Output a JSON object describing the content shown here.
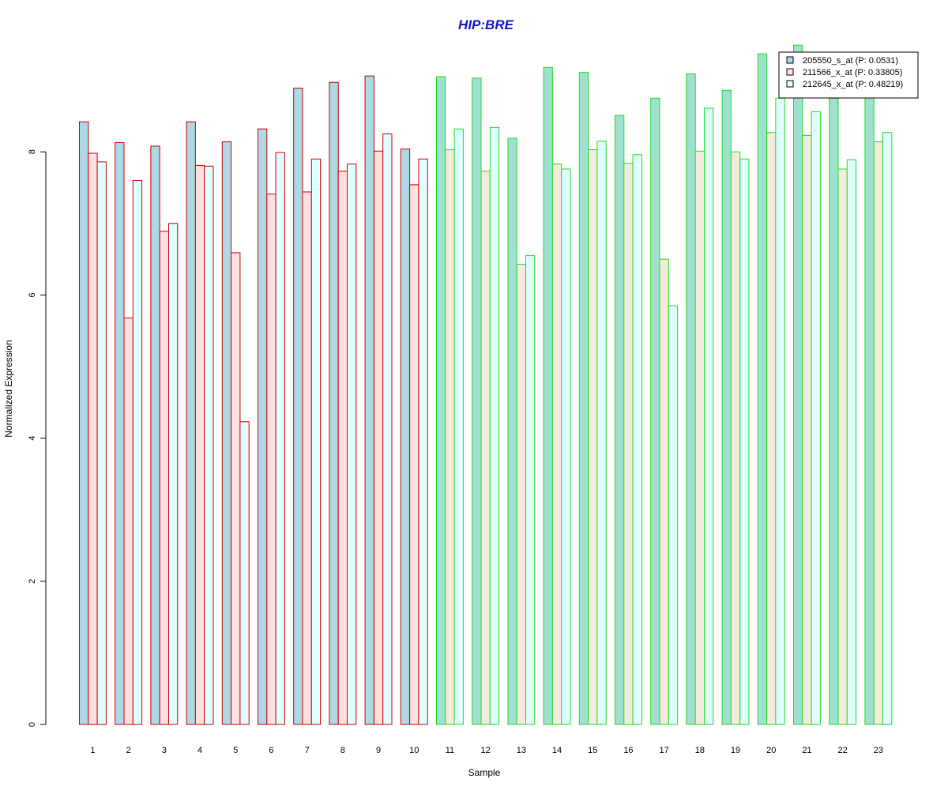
{
  "chart_data": {
    "type": "bar",
    "title": "HIP:BRE",
    "xlabel": "Sample",
    "ylabel": "Normalized Expression",
    "ylim": [
      0,
      9.6
    ],
    "yticks": [
      "0",
      "2",
      "4",
      "6",
      "8"
    ],
    "grid": false,
    "legend_position": "top-right",
    "categories": [
      "1",
      "2",
      "3",
      "4",
      "5",
      "6",
      "7",
      "8",
      "9",
      "10",
      "11",
      "12",
      "13",
      "14",
      "15",
      "16",
      "17",
      "18",
      "19",
      "20",
      "21",
      "22",
      "23"
    ],
    "group_border_colors": [
      "#cc0000",
      "#cc0000",
      "#cc0000",
      "#cc0000",
      "#cc0000",
      "#cc0000",
      "#cc0000",
      "#cc0000",
      "#cc0000",
      "#cc0000",
      "#22dd22",
      "#22dd22",
      "#22dd22",
      "#22dd22",
      "#22dd22",
      "#22dd22",
      "#22dd22",
      "#22dd22",
      "#22dd22",
      "#22dd22",
      "#22dd22",
      "#22dd22",
      "#22dd22"
    ],
    "series": [
      {
        "name": "205550_s_at (P: 0.0531)",
        "fill_red_group": "#add8e6",
        "fill_green_group": "#a0e0d0",
        "values": [
          8.42,
          8.13,
          8.08,
          8.42,
          8.14,
          8.32,
          8.89,
          8.97,
          9.06,
          8.04,
          9.05,
          9.03,
          8.19,
          9.18,
          9.11,
          8.51,
          8.75,
          9.09,
          8.86,
          9.37,
          9.49,
          8.75,
          8.81
        ]
      },
      {
        "name": "211566_x_at (P: 0.33805)",
        "fill_red_group": "#ffe0e0",
        "fill_green_group": "#f5ebdc",
        "values": [
          7.98,
          5.68,
          6.89,
          7.81,
          6.59,
          7.41,
          7.44,
          7.73,
          8.01,
          7.54,
          8.03,
          7.73,
          6.43,
          7.83,
          8.03,
          7.84,
          6.5,
          8.01,
          8.0,
          8.27,
          8.23,
          7.76,
          8.14
        ]
      },
      {
        "name": "212645_x_at (P: 0.48219)",
        "fill_red_group": "#e0ffff",
        "fill_green_group": "#e0ffff",
        "values": [
          7.86,
          7.6,
          7.0,
          7.8,
          4.23,
          7.99,
          7.9,
          7.83,
          8.25,
          7.9,
          8.32,
          8.34,
          6.55,
          7.76,
          8.15,
          7.96,
          5.85,
          8.61,
          7.9,
          8.75,
          8.56,
          7.89,
          8.27
        ]
      }
    ]
  }
}
